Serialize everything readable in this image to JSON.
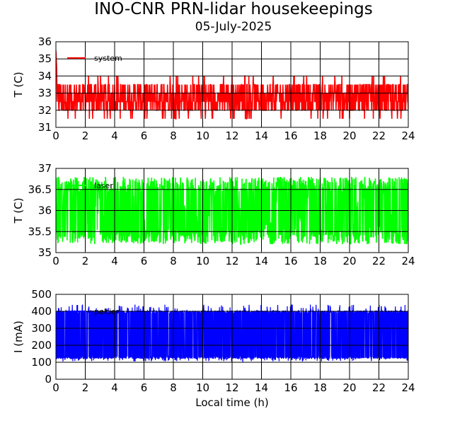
{
  "header": {
    "title": "INO-CNR PRN-lidar housekeepings",
    "subtitle": "05-July-2025"
  },
  "chart_data": [
    {
      "type": "line",
      "ylabel": "T (C)",
      "xlabel": "",
      "xlim": [
        0,
        24
      ],
      "ylim": [
        31,
        36
      ],
      "x_ticks": [
        0,
        2,
        4,
        6,
        8,
        10,
        12,
        14,
        16,
        18,
        20,
        22,
        24
      ],
      "y_ticks": [
        31,
        32,
        33,
        34,
        35,
        36
      ],
      "y_tick_labels": [
        "31",
        "32",
        "33",
        "34",
        "35",
        "36"
      ],
      "grid": true,
      "legend": "top-left",
      "series": [
        {
          "name": "system",
          "color": "#ff0000",
          "start_value": 35.5,
          "start_drop_until_x": 0.08,
          "levels": [
            32,
            32.5,
            33,
            33.5
          ],
          "occasional_levels": [
            31.5,
            34
          ],
          "x_step_h": 0.02
        }
      ]
    },
    {
      "type": "line",
      "ylabel": "T (C)",
      "xlabel": "",
      "xlim": [
        0,
        24
      ],
      "ylim": [
        35,
        37
      ],
      "x_ticks": [
        0,
        2,
        4,
        6,
        8,
        10,
        12,
        14,
        16,
        18,
        20,
        22,
        24
      ],
      "y_ticks": [
        35,
        35.5,
        36,
        36.5,
        37
      ],
      "y_tick_labels": [
        "35",
        "35.5",
        "36",
        "36.5",
        "37"
      ],
      "grid": true,
      "legend": "top-left",
      "series": [
        {
          "name": "laser",
          "color": "#00ff00",
          "min_value": 35.2,
          "max_value": 36.8,
          "x_step_h": 0.02
        }
      ]
    },
    {
      "type": "line",
      "ylabel": "I (mA)",
      "xlabel": "Local time (h)",
      "xlim": [
        0,
        24
      ],
      "ylim": [
        0,
        500
      ],
      "x_ticks": [
        0,
        2,
        4,
        6,
        8,
        10,
        12,
        14,
        16,
        18,
        20,
        22,
        24
      ],
      "y_ticks": [
        0,
        100,
        200,
        300,
        400,
        500
      ],
      "y_tick_labels": [
        "0",
        "100",
        "200",
        "300",
        "400",
        "500"
      ],
      "grid": true,
      "legend": "top-left",
      "series": [
        {
          "name": "peltier",
          "color": "#0000ff",
          "min_value": 105,
          "max_value": 440,
          "typical_top": 405,
          "typical_bottom": 120,
          "x_step_h": 0.01
        }
      ]
    }
  ]
}
